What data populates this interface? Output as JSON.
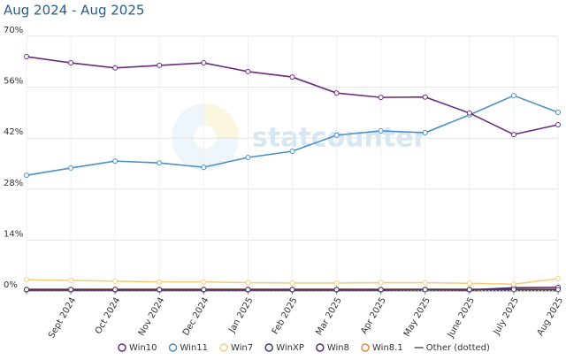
{
  "chart_data": {
    "type": "line",
    "title": "Aug 2024 - Aug 2025",
    "watermark": "statcounter",
    "categories": [
      null,
      "Sept 2024",
      "Oct 2024",
      "Nov 2024",
      "Dec 2024",
      "Jan 2025",
      "Feb 2025",
      "Mar 2025",
      "Apr 2025",
      "May 2025",
      "June 2025",
      "July 2025",
      "Aug 2025"
    ],
    "ylim": [
      0,
      70
    ],
    "yticks": [
      {
        "value": 0,
        "label": "0%"
      },
      {
        "value": 14,
        "label": "14%"
      },
      {
        "value": 28,
        "label": "28%"
      },
      {
        "value": 42,
        "label": "42%"
      },
      {
        "value": 56,
        "label": "56%"
      },
      {
        "value": 70,
        "label": "70%"
      }
    ],
    "grid": true,
    "series": [
      {
        "name": "Win10",
        "color": "#6a2c7e",
        "values": [
          64.4,
          62.7,
          61.3,
          62.0,
          62.7,
          60.3,
          58.8,
          54.4,
          53.2,
          53.3,
          48.9,
          43.0,
          45.7
        ]
      },
      {
        "name": "Win11",
        "color": "#4a8fc7",
        "values": [
          31.8,
          33.8,
          35.7,
          35.2,
          34.0,
          36.7,
          38.4,
          42.8,
          44.0,
          43.5,
          48.4,
          53.7,
          49.1
        ]
      },
      {
        "name": "Win7",
        "color": "#f0d080",
        "values": [
          3.1,
          2.9,
          2.7,
          2.5,
          2.5,
          2.3,
          2.2,
          2.2,
          2.3,
          2.3,
          2.1,
          1.9,
          3.4
        ]
      },
      {
        "name": "WinXP",
        "color": "#3a3a7a",
        "values": [
          0.4,
          0.4,
          0.4,
          0.4,
          0.4,
          0.4,
          0.4,
          0.4,
          0.4,
          0.4,
          0.4,
          0.4,
          0.4
        ]
      },
      {
        "name": "Win8",
        "color": "#5b2a6b",
        "values": [
          0.3,
          0.3,
          0.3,
          0.3,
          0.3,
          0.3,
          0.3,
          0.3,
          0.3,
          0.4,
          0.3,
          0.9,
          1.0
        ]
      },
      {
        "name": "Win8.1",
        "color": "#e08a3c",
        "values": [
          0.5,
          0.5,
          0.5,
          0.5,
          0.5,
          0.5,
          0.5,
          0.5,
          0.5,
          0.5,
          0.5,
          0.5,
          0.5
        ]
      },
      {
        "name": "Other (dotted)",
        "color": "#555555",
        "dotted": true,
        "values": [
          0.2,
          0.2,
          0.2,
          0.2,
          0.2,
          0.2,
          0.2,
          0.2,
          0.2,
          0.2,
          0.2,
          0.2,
          0.2
        ]
      }
    ]
  }
}
